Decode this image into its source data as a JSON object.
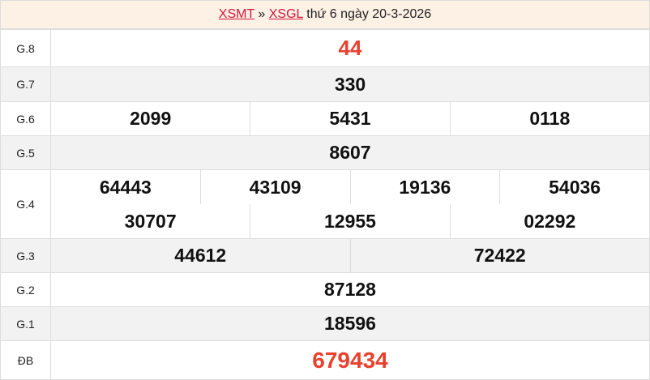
{
  "header": {
    "link1": "XSMT",
    "sep": " » ",
    "link2": "XSGL",
    "text": " thứ 6 ngày 20-3-2026"
  },
  "colors": {
    "link": "#d4163c",
    "highlight": "#e8412e",
    "header_bg": "#fdf1e6",
    "alt_row": "#f2f2f2"
  },
  "prizes": {
    "g8": {
      "label": "G.8",
      "values": [
        "44"
      ]
    },
    "g7": {
      "label": "G.7",
      "values": [
        "330"
      ]
    },
    "g6": {
      "label": "G.6",
      "values": [
        "2099",
        "5431",
        "0118"
      ]
    },
    "g5": {
      "label": "G.5",
      "values": [
        "8607"
      ]
    },
    "g4": {
      "label": "G.4",
      "values": [
        "64443",
        "43109",
        "19136",
        "54036",
        "30707",
        "12955",
        "02292"
      ]
    },
    "g3": {
      "label": "G.3",
      "values": [
        "44612",
        "72422"
      ]
    },
    "g2": {
      "label": "G.2",
      "values": [
        "87128"
      ]
    },
    "g1": {
      "label": "G.1",
      "values": [
        "18596"
      ]
    },
    "db": {
      "label": "ĐB",
      "values": [
        "679434"
      ]
    }
  }
}
